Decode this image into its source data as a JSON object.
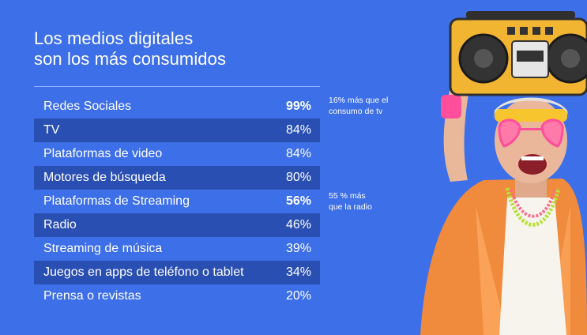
{
  "title": {
    "line1": "Los medios digitales",
    "line2": "son los más consumidos"
  },
  "rows": [
    {
      "label": "Redes Sociales",
      "value": "99%",
      "bold": true
    },
    {
      "label": "TV",
      "value": "84%",
      "bold": false
    },
    {
      "label": "Plataformas de video",
      "value": "84%",
      "bold": false
    },
    {
      "label": "Motores de búsqueda",
      "value": "80%",
      "bold": false
    },
    {
      "label": "Plataformas de Streaming",
      "value": "56%",
      "bold": true
    },
    {
      "label": "Radio",
      "value": "46%",
      "bold": false
    },
    {
      "label": "Streaming de música",
      "value": "39%",
      "bold": false
    },
    {
      "label": "Juegos en apps de teléfono o tablet",
      "value": "34%",
      "bold": false
    },
    {
      "label": "Prensa o revistas",
      "value": "20%",
      "bold": false
    }
  ],
  "notes": {
    "note1": {
      "line1": "16% más que el",
      "line2": "consumo de tv"
    },
    "note2": {
      "line1": "55 % más",
      "line2": "que la radio"
    }
  },
  "colors": {
    "background": "#3d6fe8",
    "row_shade": "#2a4fb3",
    "boombox": "#f2b532",
    "jacket": "#f08a3c"
  }
}
